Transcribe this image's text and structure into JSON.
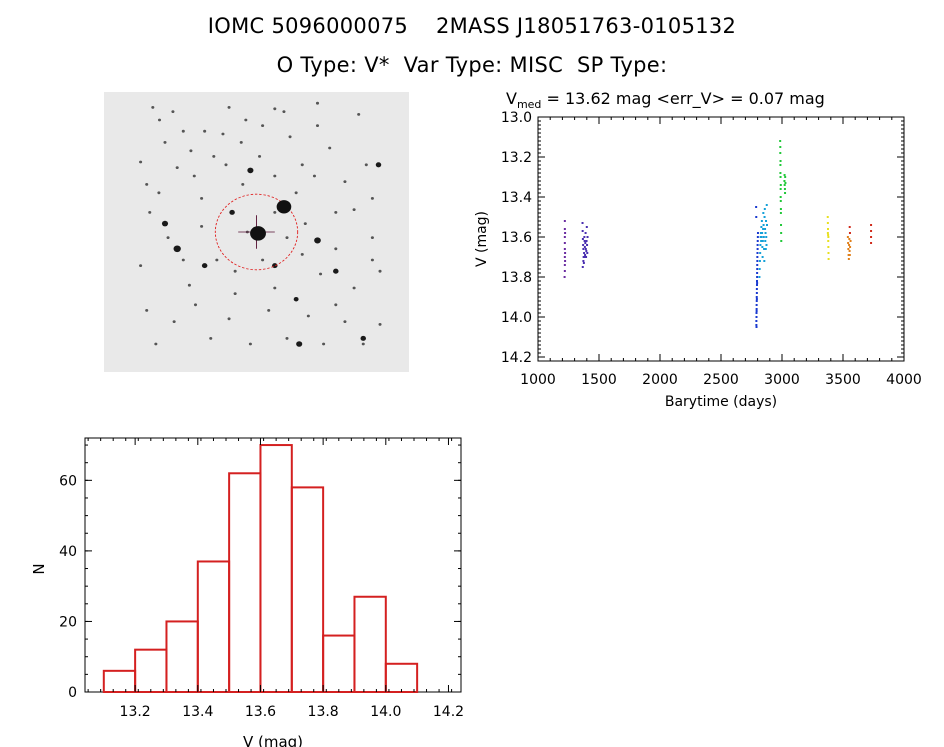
{
  "header": {
    "title_line1": "IOMC 5096000075    2MASS J18051763-0105132",
    "title_line2": "O Type: V*  Var Type: MISC  SP Type:"
  },
  "finder_chart": {
    "field_stars": [
      [
        160,
        55
      ],
      [
        182,
        100
      ],
      [
        226,
        70
      ],
      [
        285,
        210
      ],
      [
        296,
        300
      ],
      [
        330,
        140
      ],
      [
        360,
        230
      ],
      [
        410,
        55
      ],
      [
        465,
        100
      ],
      [
        510,
        230
      ],
      [
        560,
        300
      ],
      [
        590,
        70
      ],
      [
        610,
        160
      ],
      [
        650,
        260
      ],
      [
        700,
        120
      ],
      [
        740,
        200
      ],
      [
        790,
        320
      ],
      [
        835,
        80
      ],
      [
        860,
        260
      ],
      [
        880,
        380
      ],
      [
        150,
        430
      ],
      [
        210,
        520
      ],
      [
        260,
        600
      ],
      [
        320,
        480
      ],
      [
        370,
        600
      ],
      [
        430,
        720
      ],
      [
        470,
        500
      ],
      [
        520,
        600
      ],
      [
        560,
        430
      ],
      [
        600,
        520
      ],
      [
        660,
        470
      ],
      [
        710,
        650
      ],
      [
        760,
        560
      ],
      [
        820,
        700
      ],
      [
        880,
        520
      ],
      [
        140,
        780
      ],
      [
        230,
        820
      ],
      [
        300,
        760
      ],
      [
        350,
        880
      ],
      [
        410,
        810
      ],
      [
        480,
        900
      ],
      [
        540,
        780
      ],
      [
        600,
        880
      ],
      [
        670,
        800
      ],
      [
        720,
        900
      ],
      [
        790,
        820
      ],
      [
        850,
        900
      ],
      [
        905,
        640
      ],
      [
        905,
        830
      ],
      [
        120,
        620
      ],
      [
        180,
        360
      ],
      [
        240,
        270
      ],
      [
        320,
        380
      ],
      [
        400,
        260
      ],
      [
        455,
        330
      ],
      [
        630,
        360
      ],
      [
        690,
        300
      ],
      [
        760,
        430
      ],
      [
        820,
        420
      ],
      [
        560,
        60
      ],
      [
        700,
        40
      ],
      [
        390,
        150
      ],
      [
        450,
        180
      ],
      [
        520,
        120
      ],
      [
        260,
        140
      ],
      [
        200,
        180
      ],
      [
        120,
        250
      ],
      [
        140,
        330
      ],
      [
        170,
        900
      ],
      [
        280,
        690
      ],
      [
        430,
        640
      ],
      [
        650,
        580
      ],
      [
        880,
        600
      ],
      [
        760,
        760
      ],
      [
        560,
        700
      ]
    ],
    "bright_stars": [
      [
        200,
        470,
        10
      ],
      [
        240,
        560,
        12
      ],
      [
        330,
        620,
        9
      ],
      [
        480,
        280,
        10
      ],
      [
        560,
        620,
        9
      ],
      [
        640,
        900,
        10
      ],
      [
        700,
        530,
        11
      ],
      [
        760,
        640,
        9
      ],
      [
        900,
        260,
        9
      ],
      [
        850,
        880,
        9
      ],
      [
        630,
        740,
        8
      ],
      [
        420,
        430,
        9
      ]
    ]
  },
  "chart_data": [
    {
      "type": "scatter",
      "title": "V_med = 13.62 mag <err_V> = 0.07 mag",
      "title_main": "V",
      "title_sub": "med",
      "title_rest": " = 13.62 mag <err_V> = 0.07 mag",
      "xlabel": "Barytime (days)",
      "ylabel": "V (mag)",
      "xlim": [
        1000,
        4000
      ],
      "ylim": [
        14.22,
        13.0
      ],
      "x_ticks": [
        1000,
        1500,
        2000,
        2500,
        3000,
        3500,
        4000
      ],
      "y_ticks": [
        "13.0",
        "13.2",
        "13.4",
        "13.6",
        "13.8",
        "14.0",
        "14.2"
      ],
      "series": [
        {
          "color": "#6a2ca0",
          "values": [
            [
              1220,
              13.52
            ],
            [
              1220,
              13.56
            ],
            [
              1220,
              13.6
            ],
            [
              1220,
              13.63
            ],
            [
              1220,
              13.66
            ],
            [
              1220,
              13.7
            ],
            [
              1220,
              13.74
            ],
            [
              1220,
              13.77
            ],
            [
              1222,
              13.58
            ],
            [
              1222,
              13.68
            ],
            [
              1222,
              13.72
            ],
            [
              1218,
              13.8
            ]
          ]
        },
        {
          "color": "#4a2fb0",
          "values": [
            [
              1365,
              13.53
            ],
            [
              1366,
              13.57
            ],
            [
              1368,
              13.61
            ],
            [
              1370,
              13.64
            ],
            [
              1372,
              13.66
            ],
            [
              1374,
              13.7
            ],
            [
              1376,
              13.73
            ],
            [
              1378,
              13.68
            ],
            [
              1380,
              13.6
            ],
            [
              1382,
              13.62
            ],
            [
              1384,
              13.65
            ],
            [
              1386,
              13.69
            ],
            [
              1388,
              13.63
            ],
            [
              1390,
              13.58
            ],
            [
              1392,
              13.66
            ],
            [
              1394,
              13.7
            ],
            [
              1396,
              13.67
            ],
            [
              1398,
              13.62
            ],
            [
              1400,
              13.55
            ],
            [
              1402,
              13.64
            ],
            [
              1404,
              13.68
            ],
            [
              1406,
              13.6
            ],
            [
              1367,
              13.75
            ],
            [
              1372,
              13.72
            ],
            [
              1388,
              13.7
            ]
          ]
        },
        {
          "color": "#1a3ad0",
          "values": [
            [
              2790,
              14.04
            ],
            [
              2790,
              14.02
            ],
            [
              2791,
              14.0
            ],
            [
              2791,
              13.98
            ],
            [
              2792,
              13.96
            ],
            [
              2792,
              13.94
            ],
            [
              2793,
              13.92
            ],
            [
              2793,
              13.9
            ],
            [
              2794,
              13.88
            ],
            [
              2794,
              13.86
            ],
            [
              2795,
              13.84
            ],
            [
              2795,
              13.82
            ],
            [
              2796,
              13.8
            ],
            [
              2796,
              13.78
            ],
            [
              2797,
              13.76
            ],
            [
              2797,
              13.74
            ],
            [
              2798,
              13.72
            ],
            [
              2798,
              13.7
            ],
            [
              2799,
              13.68
            ],
            [
              2800,
              13.66
            ],
            [
              2800,
              13.64
            ],
            [
              2801,
              13.62
            ],
            [
              2802,
              13.6
            ],
            [
              2803,
              13.58
            ],
            [
              2791,
              14.05
            ],
            [
              2792,
              13.97
            ],
            [
              2794,
              13.91
            ],
            [
              2796,
              13.83
            ],
            [
              2788,
              13.45
            ],
            [
              2789,
              13.5
            ]
          ]
        },
        {
          "color": "#14a0d8",
          "values": [
            [
              2815,
              13.8
            ],
            [
              2817,
              13.76
            ],
            [
              2819,
              13.72
            ],
            [
              2821,
              13.68
            ],
            [
              2823,
              13.64
            ],
            [
              2825,
              13.6
            ],
            [
              2827,
              13.58
            ],
            [
              2829,
              13.62
            ],
            [
              2831,
              13.55
            ],
            [
              2833,
              13.6
            ],
            [
              2835,
              13.52
            ],
            [
              2837,
              13.58
            ],
            [
              2839,
              13.65
            ],
            [
              2841,
              13.7
            ],
            [
              2843,
              13.62
            ],
            [
              2845,
              13.56
            ],
            [
              2847,
              13.48
            ],
            [
              2849,
              13.54
            ],
            [
              2851,
              13.6
            ],
            [
              2853,
              13.66
            ],
            [
              2855,
              13.72
            ],
            [
              2857,
              13.5
            ],
            [
              2859,
              13.46
            ],
            [
              2861,
              13.56
            ],
            [
              2863,
              13.62
            ],
            [
              2865,
              13.58
            ],
            [
              2867,
              13.66
            ],
            [
              2869,
              13.52
            ],
            [
              2871,
              13.6
            ],
            [
              2873,
              13.64
            ],
            [
              2875,
              13.44
            ],
            [
              2877,
              13.54
            ]
          ]
        },
        {
          "color": "#22c83a",
          "values": [
            [
              2985,
              13.12
            ],
            [
              2986,
              13.18
            ],
            [
              2987,
              13.24
            ],
            [
              2988,
              13.3
            ],
            [
              2989,
              13.36
            ],
            [
              2990,
              13.42
            ],
            [
              2991,
              13.48
            ],
            [
              2992,
              13.54
            ],
            [
              2993,
              13.58
            ],
            [
              2994,
              13.62
            ],
            [
              2987,
              13.28
            ],
            [
              2989,
              13.4
            ],
            [
              2991,
              13.46
            ],
            [
              2986,
              13.15
            ],
            [
              2988,
              13.22
            ],
            [
              2990,
              13.34
            ],
            [
              3020,
              13.32
            ],
            [
              3022,
              13.34
            ],
            [
              3024,
              13.36
            ],
            [
              3026,
              13.3
            ],
            [
              3028,
              13.33
            ],
            [
              3025,
              13.38
            ],
            [
              3021,
              13.29
            ]
          ]
        },
        {
          "color": "#e8e020",
          "values": [
            [
              3375,
              13.5
            ],
            [
              3376,
              13.53
            ],
            [
              3377,
              13.56
            ],
            [
              3378,
              13.59
            ],
            [
              3379,
              13.62
            ],
            [
              3380,
              13.65
            ],
            [
              3381,
              13.68
            ],
            [
              3382,
              13.71
            ],
            [
              3376,
              13.58
            ],
            [
              3380,
              13.6
            ]
          ]
        },
        {
          "color": "#e0801c",
          "values": [
            [
              3540,
              13.6
            ],
            [
              3542,
              13.63
            ],
            [
              3544,
              13.66
            ],
            [
              3546,
              13.69
            ],
            [
              3548,
              13.71
            ],
            [
              3550,
              13.64
            ],
            [
              3552,
              13.61
            ],
            [
              3554,
              13.67
            ],
            [
              3556,
              13.69
            ],
            [
              3558,
              13.65
            ],
            [
              3562,
              13.62
            ]
          ]
        },
        {
          "color": "#d02a1a",
          "values": [
            [
              3555,
              13.55
            ],
            [
              3557,
              13.58
            ],
            [
              3730,
              13.54
            ],
            [
              3730,
              13.57
            ],
            [
              3730,
              13.6
            ],
            [
              3730,
              13.63
            ]
          ]
        }
      ]
    },
    {
      "type": "bar",
      "xlabel": "V (mag)",
      "ylabel": "N",
      "xlim": [
        13.04,
        14.24
      ],
      "ylim": [
        0,
        72
      ],
      "x_ticks": [
        "13.2",
        "13.4",
        "13.6",
        "13.8",
        "14.0",
        "14.2"
      ],
      "y_ticks": [
        "0",
        "20",
        "40",
        "60"
      ],
      "bin_width": 0.1,
      "bin_starts": [
        13.1,
        13.2,
        13.3,
        13.4,
        13.5,
        13.6,
        13.7,
        13.8,
        13.9,
        14.0
      ],
      "values": [
        6,
        12,
        20,
        37,
        62,
        70,
        58,
        16,
        27,
        8
      ],
      "bar_color": "#d42020"
    }
  ]
}
